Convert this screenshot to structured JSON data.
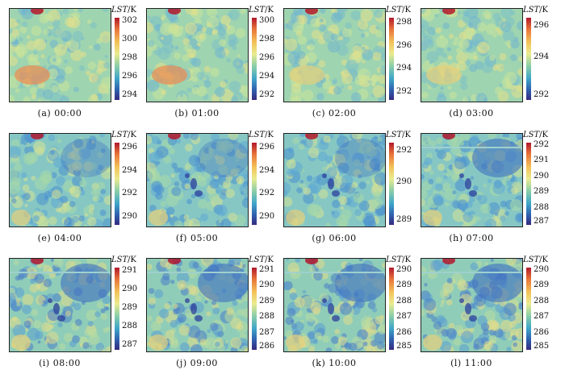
{
  "colorbar_title": {
    "var": "LST",
    "unit": "/K"
  },
  "panels": [
    {
      "caption": "(a) 00:00",
      "ticks": [
        "302",
        "300",
        "298",
        "296",
        "294"
      ],
      "range": [
        293,
        303
      ]
    },
    {
      "caption": "(b) 01:00",
      "ticks": [
        "300",
        "298",
        "296",
        "294",
        "292"
      ],
      "range": [
        291,
        301
      ]
    },
    {
      "caption": "(c) 02:00",
      "ticks": [
        "298",
        "296",
        "294",
        "292"
      ],
      "range": [
        291,
        299
      ]
    },
    {
      "caption": "(d) 03:00",
      "ticks": [
        "296",
        "294",
        "292"
      ],
      "range": [
        290,
        297
      ]
    },
    {
      "caption": "(e) 04:00",
      "ticks": [
        "296",
        "294",
        "292",
        "290"
      ],
      "range": [
        289.5,
        297
      ]
    },
    {
      "caption": "(f) 05:00",
      "ticks": [
        "296",
        "294",
        "292",
        "290"
      ],
      "range": [
        289,
        296.5
      ]
    },
    {
      "caption": "(g) 06:00",
      "ticks": [
        "292",
        "290",
        "289"
      ],
      "range": [
        288.5,
        294
      ]
    },
    {
      "caption": "(h) 07:00",
      "ticks": [
        "292",
        "291",
        "290",
        "289",
        "288",
        "287"
      ],
      "range": [
        286.5,
        292.5
      ]
    },
    {
      "caption": "(i) 08:00",
      "ticks": [
        "291",
        "290",
        "289",
        "288",
        "287"
      ],
      "range": [
        286.5,
        291.5
      ]
    },
    {
      "caption": "(j) 09:00",
      "ticks": [
        "291",
        "290",
        "289",
        "288",
        "287",
        "286"
      ],
      "range": [
        285.5,
        291.5
      ]
    },
    {
      "caption": "(k) 10:00",
      "ticks": [
        "290",
        "289",
        "288",
        "287",
        "286",
        "285"
      ],
      "range": [
        284.5,
        290.5
      ]
    },
    {
      "caption": "(l) 11:00",
      "ticks": [
        "290",
        "289",
        "288",
        "287",
        "286",
        "285"
      ],
      "range": [
        284.5,
        290.5
      ]
    }
  ],
  "colors": {
    "high": "#b2182b",
    "mid": "#eaeb8f",
    "low": "#362a7e",
    "field": "#8ed0b4"
  }
}
